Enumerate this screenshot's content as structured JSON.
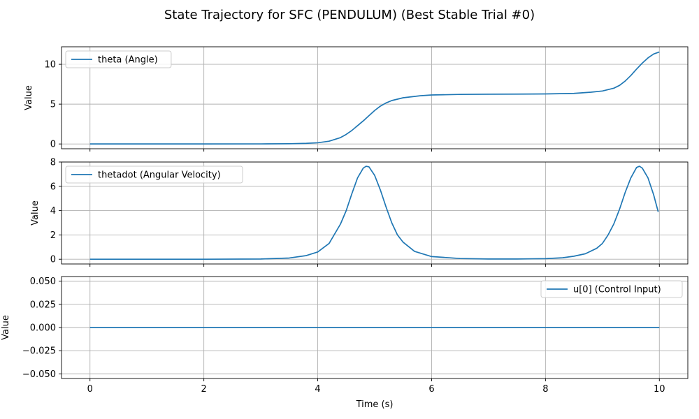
{
  "chart_data": {
    "title": "State Trajectory for SFC (PENDULUM) (Best Stable Trial #0)",
    "xlabel": "Time (s)",
    "x_range": [
      0,
      10
    ],
    "x_ticks": [
      0,
      2,
      4,
      6,
      8,
      10
    ],
    "grid": true,
    "colors": {
      "series": "#1f77b4"
    },
    "subplots": [
      {
        "type": "line",
        "ylabel": "Value",
        "ylim": [
          -0.6,
          12.2
        ],
        "y_ticks": [
          0,
          5,
          10
        ],
        "legend": {
          "placement": "upper-left"
        },
        "series": [
          {
            "name": "theta (Angle)",
            "x": [
              0,
              1,
              2,
              3,
              3.5,
              3.8,
              4.0,
              4.2,
              4.4,
              4.5,
              4.6,
              4.7,
              4.8,
              4.9,
              5.0,
              5.1,
              5.2,
              5.3,
              5.5,
              5.8,
              6.0,
              6.5,
              7.0,
              7.5,
              8.0,
              8.5,
              8.8,
              9.0,
              9.2,
              9.3,
              9.4,
              9.5,
              9.6,
              9.7,
              9.8,
              9.9,
              10.0
            ],
            "y": [
              0,
              0,
              0,
              0.01,
              0.03,
              0.08,
              0.15,
              0.35,
              0.8,
              1.2,
              1.7,
              2.3,
              2.9,
              3.55,
              4.2,
              4.75,
              5.15,
              5.45,
              5.8,
              6.05,
              6.15,
              6.22,
              6.25,
              6.26,
              6.28,
              6.35,
              6.5,
              6.65,
              7.0,
              7.35,
              7.9,
              8.6,
              9.4,
              10.15,
              10.8,
              11.3,
              11.55
            ]
          }
        ]
      },
      {
        "type": "line",
        "ylabel": "Value",
        "ylim": [
          -0.39,
          8.0
        ],
        "y_ticks": [
          0,
          2,
          4,
          6,
          8
        ],
        "legend": {
          "placement": "upper-left"
        },
        "series": [
          {
            "name": "thetadot (Angular Velocity)",
            "x": [
              0,
              1,
              2,
              3,
              3.5,
              3.8,
              4.0,
              4.2,
              4.4,
              4.5,
              4.6,
              4.7,
              4.8,
              4.85,
              4.9,
              5.0,
              5.1,
              5.2,
              5.3,
              5.4,
              5.5,
              5.7,
              6.0,
              6.5,
              7.0,
              7.5,
              8.0,
              8.3,
              8.5,
              8.7,
              8.9,
              9.0,
              9.1,
              9.2,
              9.3,
              9.4,
              9.5,
              9.6,
              9.65,
              9.7,
              9.8,
              9.9,
              9.98
            ],
            "y": [
              0,
              0,
              0,
              0.02,
              0.1,
              0.3,
              0.6,
              1.3,
              2.9,
              4.0,
              5.4,
              6.7,
              7.5,
              7.65,
              7.6,
              6.9,
              5.7,
              4.3,
              3.0,
              2.0,
              1.4,
              0.65,
              0.22,
              0.06,
              0.02,
              0.02,
              0.05,
              0.12,
              0.25,
              0.45,
              0.9,
              1.3,
              2.0,
              2.9,
              4.1,
              5.5,
              6.7,
              7.55,
              7.65,
              7.5,
              6.7,
              5.3,
              3.9
            ]
          }
        ]
      },
      {
        "type": "line",
        "ylabel": "Value",
        "ylim": [
          -0.055,
          0.055
        ],
        "y_ticks": [
          -0.05,
          -0.025,
          0,
          0.025,
          0.05
        ],
        "y_tick_labels": [
          "−0.050",
          "−0.025",
          "0.000",
          "0.025",
          "0.050"
        ],
        "legend": {
          "placement": "upper-right"
        },
        "series": [
          {
            "name": "u[0] (Control Input)",
            "x": [
              0,
              10
            ],
            "y": [
              0,
              0
            ]
          }
        ]
      }
    ]
  }
}
